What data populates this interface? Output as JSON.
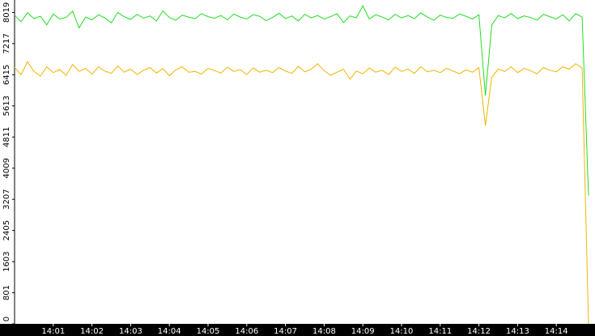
{
  "chart_data": {
    "type": "line",
    "categories": [
      null,
      null,
      null,
      null,
      null,
      null,
      "14:01",
      null,
      null,
      null,
      null,
      null,
      "14:02",
      null,
      null,
      null,
      null,
      null,
      "14:03",
      null,
      null,
      null,
      null,
      null,
      "14:04",
      null,
      null,
      null,
      null,
      null,
      "14:05",
      null,
      null,
      null,
      null,
      null,
      "14:06",
      null,
      null,
      null,
      null,
      null,
      "14:07",
      null,
      null,
      null,
      null,
      null,
      "14:08",
      null,
      null,
      null,
      null,
      null,
      "14:09",
      null,
      null,
      null,
      null,
      null,
      "14:10",
      null,
      null,
      null,
      null,
      null,
      "14:11",
      null,
      null,
      null,
      null,
      null,
      "14:12",
      null,
      null,
      null,
      null,
      null,
      "14:13",
      null,
      null,
      null,
      null,
      null,
      "14:14",
      null,
      null,
      null,
      null,
      null
    ],
    "series": [
      {
        "color": "#22dd22",
        "values": [
          7950,
          7780,
          8010,
          7860,
          7920,
          7700,
          7980,
          7850,
          7890,
          8050,
          7620,
          7900,
          7830,
          7960,
          7880,
          7750,
          8020,
          7910,
          7840,
          7970,
          7870,
          7930,
          7800,
          8060,
          7890,
          7820,
          7950,
          7900,
          7860,
          7990,
          7910,
          7870,
          7940,
          7830,
          7980,
          7900,
          7850,
          7960,
          7920,
          7810,
          7890,
          8000,
          7860,
          7930,
          7800,
          7970,
          7880,
          7940,
          7850,
          7910,
          7990,
          7760,
          7930,
          7880,
          8190,
          7850,
          7960,
          7900,
          7830,
          7970,
          7880,
          7940,
          7860,
          8010,
          7900,
          7820,
          7950,
          7890,
          7870,
          7980,
          7920,
          7850,
          7960,
          5880,
          7700,
          7940,
          7880,
          7990,
          7860,
          7930,
          7890,
          7820,
          7970,
          7910,
          7850,
          7960,
          7800,
          7990,
          7900,
          3300
        ]
      },
      {
        "color": "#f0b400",
        "values": [
          6600,
          6420,
          6750,
          6500,
          6380,
          6620,
          6470,
          6550,
          6400,
          6680,
          6500,
          6580,
          6430,
          6620,
          6510,
          6450,
          6640,
          6480,
          6560,
          6420,
          6530,
          6600,
          6460,
          6570,
          6390,
          6540,
          6620,
          6480,
          6500,
          6430,
          6580,
          6520,
          6460,
          6610,
          6500,
          6550,
          6420,
          6590,
          6480,
          6530,
          6470,
          6600,
          6510,
          6450,
          6630,
          6490,
          6560,
          6700,
          6520,
          6400,
          6480,
          6560,
          6300,
          6510,
          6440,
          6590,
          6480,
          6530,
          6420,
          6610,
          6500,
          6560,
          6450,
          6620,
          6490,
          6530,
          6470,
          6580,
          6510,
          6440,
          6540,
          6480,
          6600,
          5110,
          6350,
          6560,
          6500,
          6620,
          6470,
          6580,
          6520,
          6440,
          6600,
          6530,
          6490,
          6620,
          6560,
          6700,
          6590,
          0
        ]
      }
    ],
    "ylim": [
      0,
      8340
    ],
    "yticks": [
      0,
      801,
      1603,
      2405,
      3207,
      4009,
      4811,
      5613,
      6415,
      7217,
      8019
    ]
  }
}
